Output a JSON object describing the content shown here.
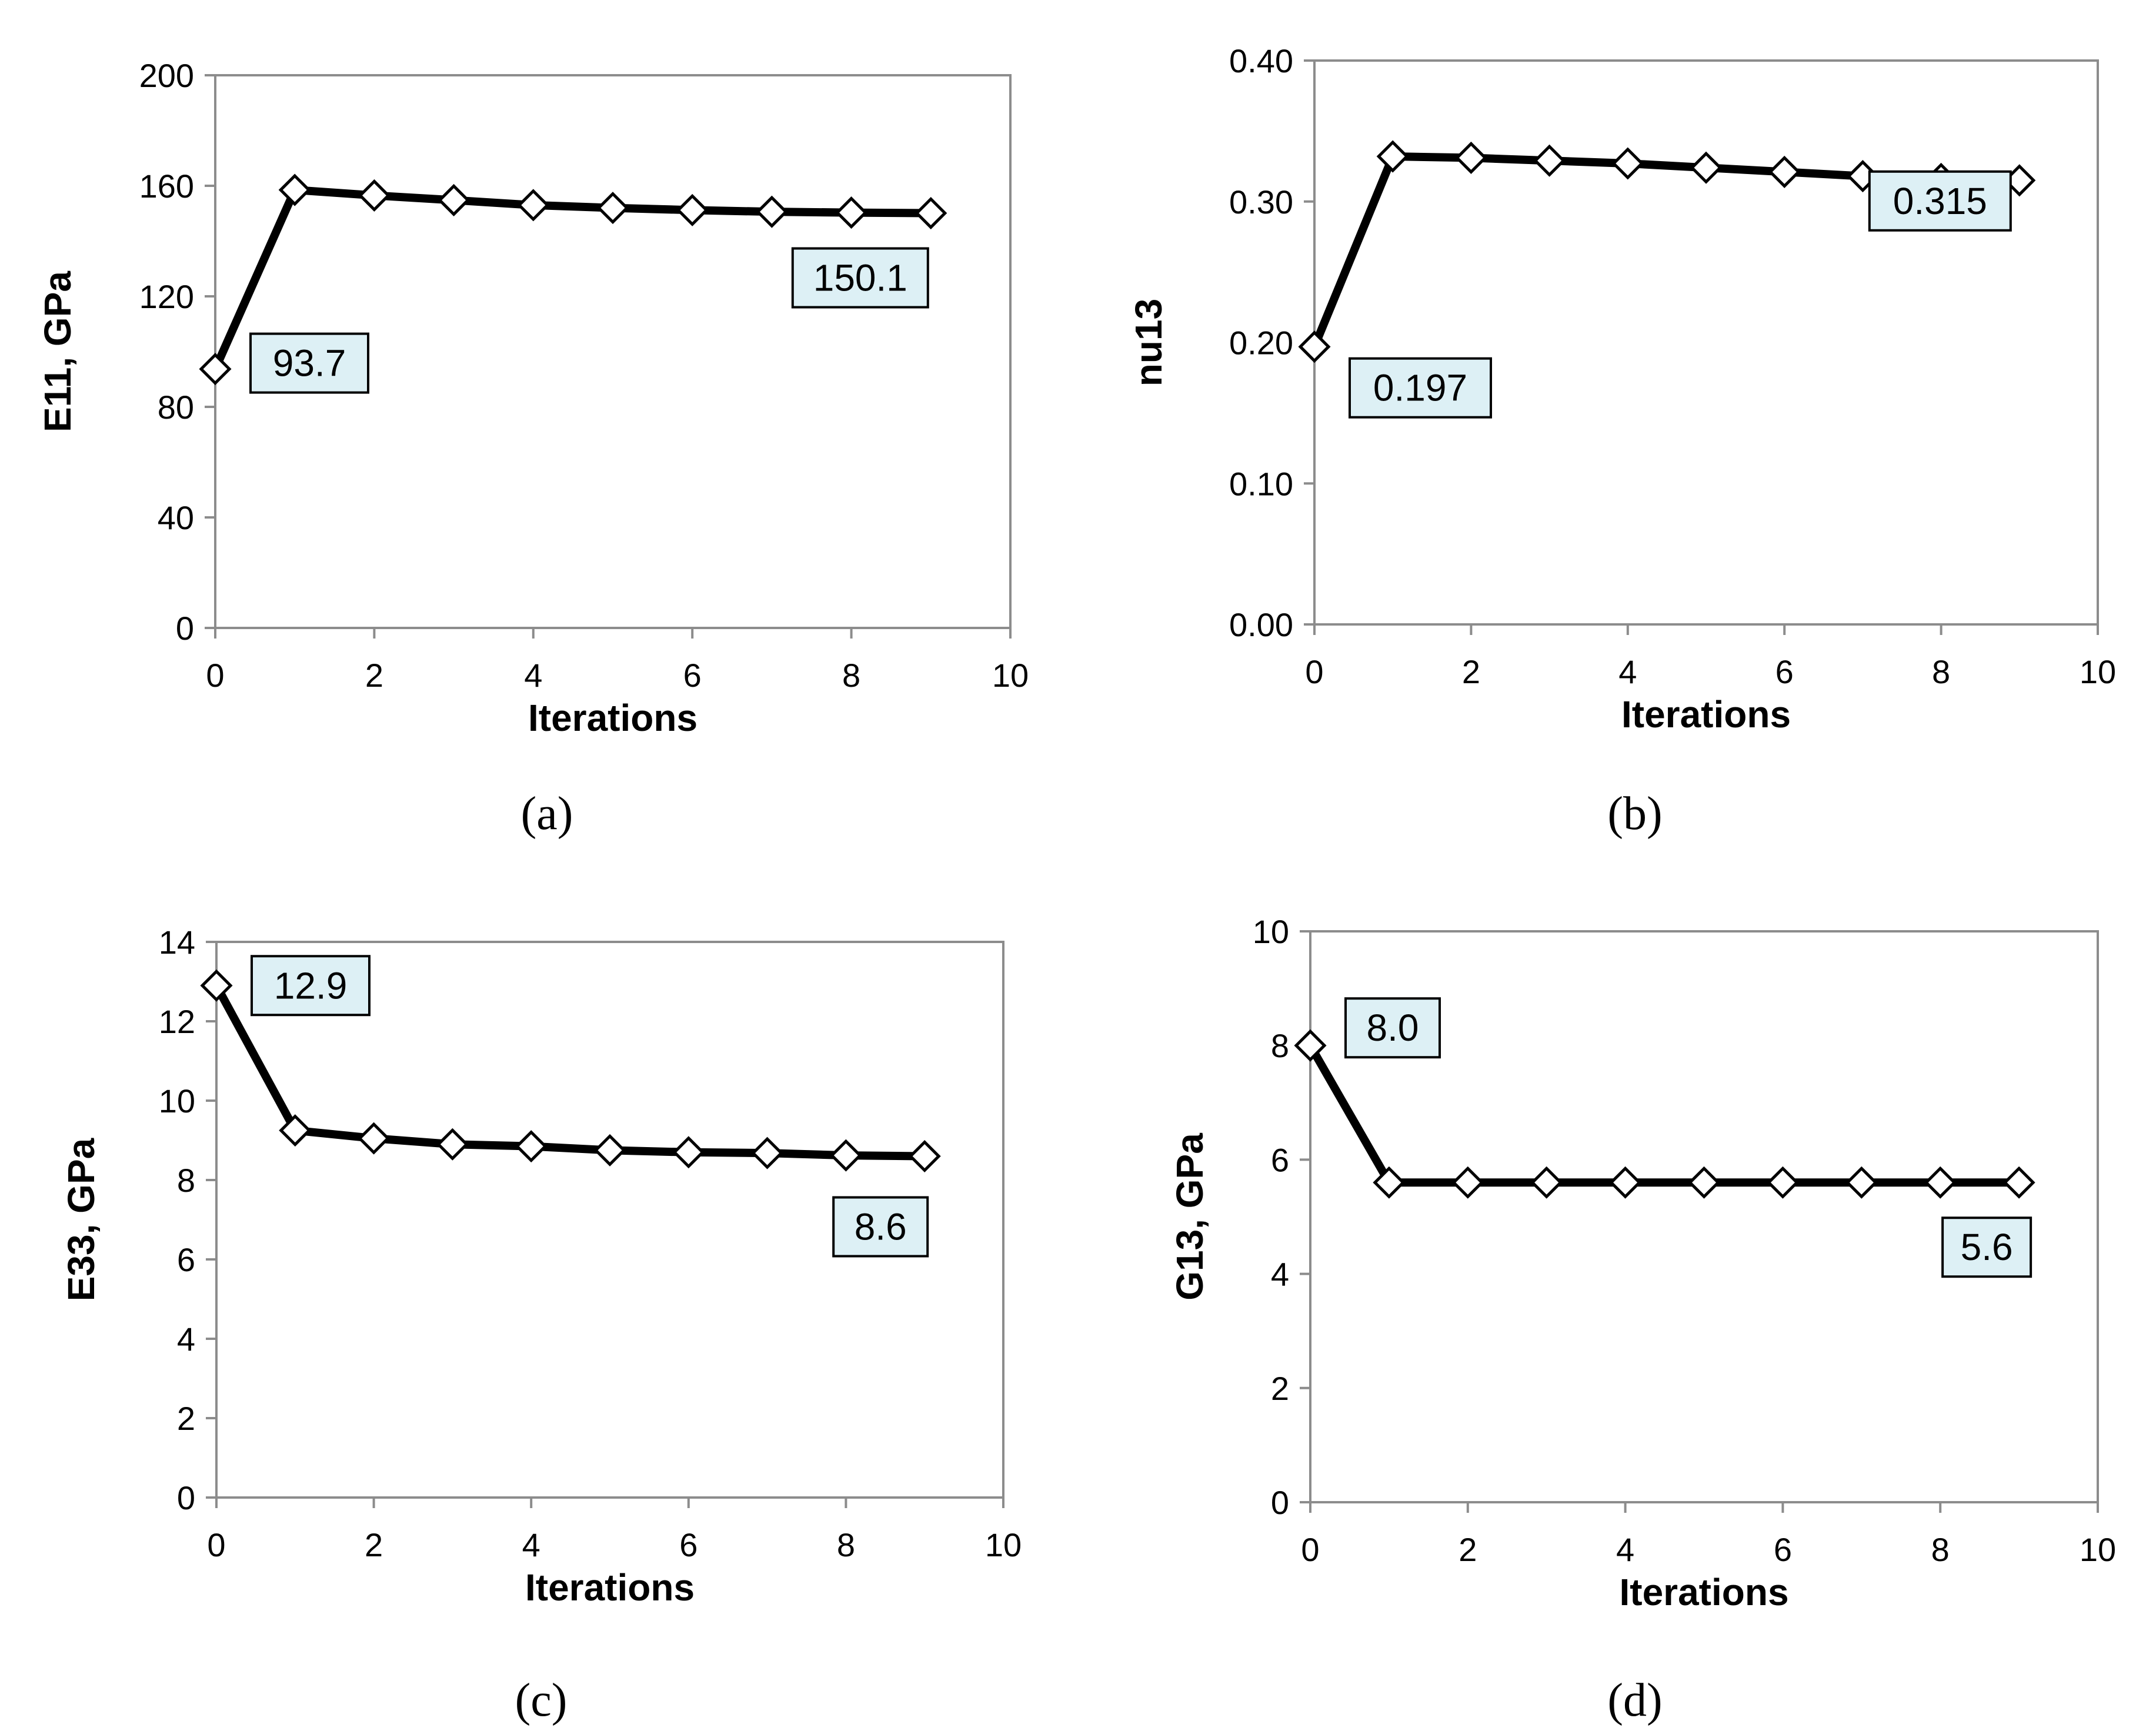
{
  "chart_data": [
    {
      "type": "line",
      "panel": "(a)",
      "caption": "(a)",
      "xlabel": "Iterations",
      "ylabel": "E11, GPa",
      "xlim": [
        0,
        10
      ],
      "ylim": [
        0,
        200
      ],
      "xticks": [
        0,
        2,
        4,
        6,
        8,
        10
      ],
      "yticks": [
        0,
        40,
        80,
        120,
        160,
        200
      ],
      "ytick_labels": [
        "0",
        "40",
        "80",
        "120",
        "160",
        "200"
      ],
      "x": [
        0,
        1,
        2,
        3,
        4,
        5,
        6,
        7,
        8,
        9
      ],
      "values": [
        93.7,
        158.5,
        156.5,
        154.8,
        153.0,
        152.0,
        151.2,
        150.6,
        150.3,
        150.1
      ],
      "data_labels": [
        {
          "index": 0,
          "text": "93.7"
        },
        {
          "index": 9,
          "text": "150.1"
        }
      ],
      "grid": false
    },
    {
      "type": "line",
      "panel": "(b)",
      "caption": "(b)",
      "xlabel": "Iterations",
      "ylabel": "nu13",
      "xlim": [
        0,
        10
      ],
      "ylim": [
        0,
        0.4
      ],
      "xticks": [
        0,
        2,
        4,
        6,
        8,
        10
      ],
      "yticks": [
        0,
        0.1,
        0.2,
        0.3,
        0.4
      ],
      "ytick_labels": [
        "0.00",
        "0.10",
        "0.20",
        "0.30",
        "0.40"
      ],
      "x": [
        0,
        1,
        2,
        3,
        4,
        5,
        6,
        7,
        8,
        9
      ],
      "values": [
        0.197,
        0.332,
        0.331,
        0.329,
        0.327,
        0.324,
        0.321,
        0.318,
        0.316,
        0.315
      ],
      "data_labels": [
        {
          "index": 0,
          "text": "0.197"
        },
        {
          "index": 9,
          "text": "0.315"
        }
      ],
      "grid": false
    },
    {
      "type": "line",
      "panel": "(c)",
      "caption": "(c)",
      "xlabel": "Iterations",
      "ylabel": "E33, GPa",
      "xlim": [
        0,
        10
      ],
      "ylim": [
        0,
        14
      ],
      "xticks": [
        0,
        2,
        4,
        6,
        8,
        10
      ],
      "yticks": [
        0,
        2,
        4,
        6,
        8,
        10,
        12,
        14
      ],
      "ytick_labels": [
        "0",
        "2",
        "4",
        "6",
        "8",
        "10",
        "12",
        "14"
      ],
      "x": [
        0,
        1,
        2,
        3,
        4,
        5,
        6,
        7,
        8,
        9
      ],
      "values": [
        12.9,
        9.25,
        9.05,
        8.9,
        8.85,
        8.75,
        8.7,
        8.68,
        8.62,
        8.6
      ],
      "data_labels": [
        {
          "index": 0,
          "text": "12.9"
        },
        {
          "index": 9,
          "text": "8.6"
        }
      ],
      "grid": false
    },
    {
      "type": "line",
      "panel": "(d)",
      "caption": "(d)",
      "xlabel": "Iterations",
      "ylabel": "G13, GPa",
      "xlim": [
        0,
        10
      ],
      "ylim": [
        0,
        10
      ],
      "xticks": [
        0,
        2,
        4,
        6,
        8,
        10
      ],
      "yticks": [
        0,
        2,
        4,
        6,
        8,
        10
      ],
      "ytick_labels": [
        "0",
        "2",
        "4",
        "6",
        "8",
        "10"
      ],
      "x": [
        0,
        1,
        2,
        3,
        4,
        5,
        6,
        7,
        8,
        9
      ],
      "values": [
        8.0,
        5.6,
        5.6,
        5.6,
        5.6,
        5.6,
        5.6,
        5.6,
        5.6,
        5.6
      ],
      "data_labels": [
        {
          "index": 0,
          "text": "8.0"
        },
        {
          "index": 9,
          "text": "5.6"
        }
      ],
      "grid": false
    }
  ],
  "colors": {
    "line": "#000000",
    "marker_fill": "#ffffff",
    "label_box_fill": "#ddf0f5",
    "axis": "#8c8c8c",
    "frame": "#8c8c8c"
  }
}
